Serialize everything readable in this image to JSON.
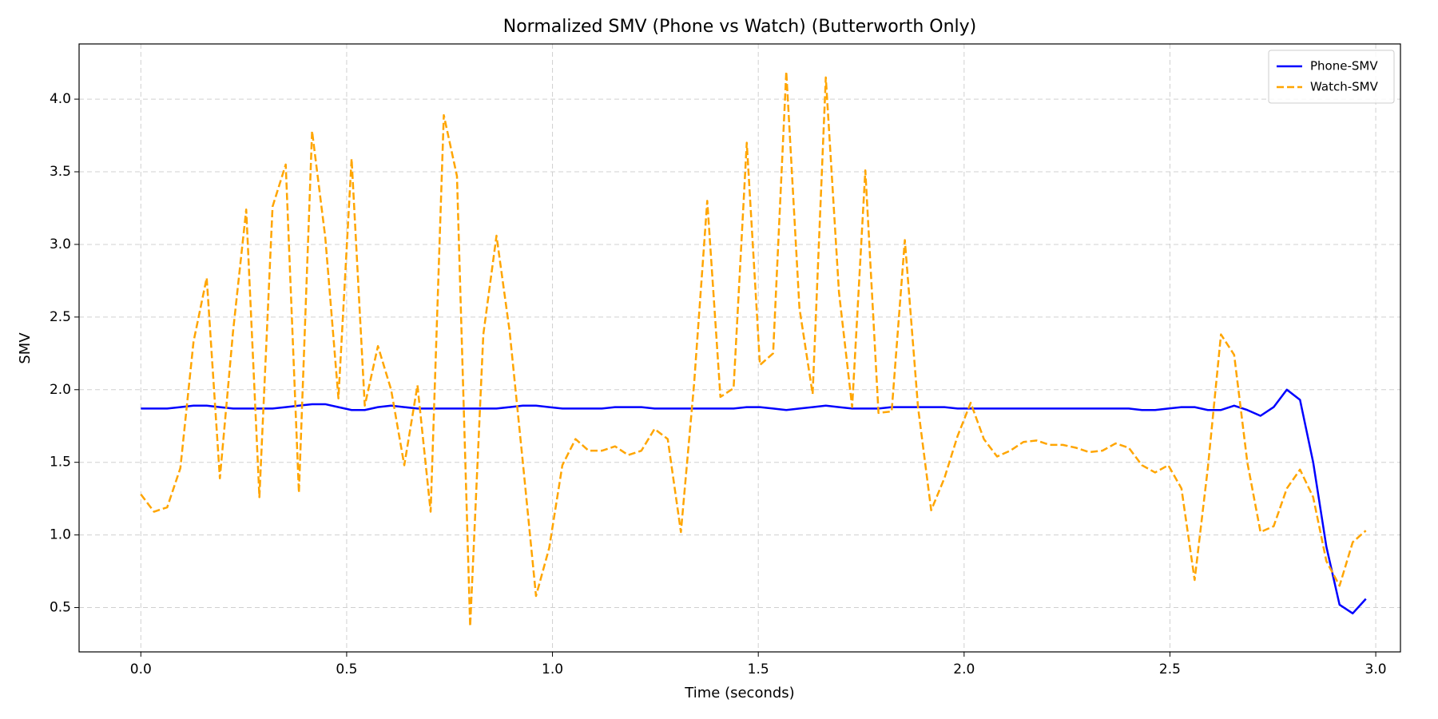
{
  "chart_data": {
    "type": "line",
    "title": "Normalized SMV (Phone vs Watch) (Butterworth Only)",
    "xlabel": "Time (seconds)",
    "ylabel": "SMV",
    "x": [
      0,
      0.032,
      0.064,
      0.096,
      0.128,
      0.16,
      0.192,
      0.224,
      0.256,
      0.288,
      0.32,
      0.352,
      0.384,
      0.416,
      0.448,
      0.48,
      0.512,
      0.544,
      0.576,
      0.608,
      0.64,
      0.672,
      0.704,
      0.736,
      0.768,
      0.8,
      0.832,
      0.864,
      0.896,
      0.928,
      0.96,
      0.992,
      1.024,
      1.056,
      1.088,
      1.12,
      1.152,
      1.184,
      1.216,
      1.248,
      1.28,
      1.312,
      1.344,
      1.376,
      1.408,
      1.44,
      1.472,
      1.504,
      1.536,
      1.568,
      1.6,
      1.632,
      1.664,
      1.696,
      1.728,
      1.76,
      1.792,
      1.824,
      1.856,
      1.888,
      1.92,
      1.952,
      1.984,
      2.016,
      2.048,
      2.08,
      2.112,
      2.144,
      2.176,
      2.208,
      2.24,
      2.272,
      2.304,
      2.336,
      2.368,
      2.4,
      2.432,
      2.464,
      2.496,
      2.528,
      2.56,
      2.592,
      2.624,
      2.656,
      2.688,
      2.72,
      2.752,
      2.784,
      2.816,
      2.848,
      2.88,
      2.912,
      2.944,
      2.976
    ],
    "series": [
      {
        "name": "Phone-SMV",
        "color": "#0000ff",
        "linestyle": "solid",
        "values": [
          1.87,
          1.87,
          1.87,
          1.88,
          1.89,
          1.89,
          1.88,
          1.87,
          1.87,
          1.87,
          1.87,
          1.88,
          1.89,
          1.9,
          1.9,
          1.88,
          1.86,
          1.86,
          1.88,
          1.89,
          1.88,
          1.87,
          1.87,
          1.87,
          1.87,
          1.87,
          1.87,
          1.87,
          1.88,
          1.89,
          1.89,
          1.88,
          1.87,
          1.87,
          1.87,
          1.87,
          1.88,
          1.88,
          1.88,
          1.87,
          1.87,
          1.87,
          1.87,
          1.87,
          1.87,
          1.87,
          1.88,
          1.88,
          1.87,
          1.86,
          1.87,
          1.88,
          1.89,
          1.88,
          1.87,
          1.87,
          1.87,
          1.88,
          1.88,
          1.88,
          1.88,
          1.88,
          1.87,
          1.87,
          1.87,
          1.87,
          1.87,
          1.87,
          1.87,
          1.87,
          1.87,
          1.87,
          1.87,
          1.87,
          1.87,
          1.87,
          1.86,
          1.86,
          1.87,
          1.88,
          1.88,
          1.86,
          1.86,
          1.89,
          1.86,
          1.82,
          1.88,
          2.0,
          1.93,
          1.5,
          0.92,
          0.52,
          0.46,
          0.56
        ]
      },
      {
        "name": "Watch-SMV",
        "color": "#ffa500",
        "linestyle": "dashed",
        "values": [
          1.28,
          1.16,
          1.19,
          1.46,
          2.33,
          2.77,
          1.39,
          2.4,
          3.24,
          1.26,
          3.26,
          3.55,
          1.29,
          3.78,
          3.05,
          1.94,
          3.59,
          1.89,
          2.3,
          2.0,
          1.48,
          2.03,
          1.16,
          3.89,
          3.47,
          0.37,
          2.38,
          3.06,
          2.4,
          1.5,
          0.58,
          0.91,
          1.48,
          1.66,
          1.58,
          1.58,
          1.61,
          1.55,
          1.58,
          1.73,
          1.66,
          1.02,
          2.04,
          3.3,
          1.95,
          2.01,
          3.7,
          2.17,
          2.25,
          4.19,
          2.56,
          1.97,
          4.15,
          2.67,
          1.88,
          3.51,
          1.84,
          1.85,
          3.03,
          1.88,
          1.17,
          1.39,
          1.68,
          1.91,
          1.66,
          1.54,
          1.58,
          1.64,
          1.65,
          1.62,
          1.62,
          1.6,
          1.57,
          1.58,
          1.63,
          1.6,
          1.48,
          1.43,
          1.48,
          1.32,
          0.69,
          1.46,
          2.38,
          2.24,
          1.5,
          1.02,
          1.06,
          1.32,
          1.45,
          1.26,
          0.82,
          0.65,
          0.95,
          1.03
        ]
      }
    ],
    "xlim": [
      -0.15,
      3.06
    ],
    "ylim": [
      0.195,
      4.38
    ],
    "xticks": [
      {
        "value": 0,
        "label": "0.0"
      },
      0.5,
      {
        "value": 1,
        "label": "1.0"
      },
      1.5,
      {
        "value": 2,
        "label": "2.0"
      },
      2.5,
      {
        "value": 3,
        "label": "3.0"
      }
    ],
    "yticks": [
      0.5,
      {
        "value": 1,
        "label": "1.0"
      },
      1.5,
      {
        "value": 2,
        "label": "2.0"
      },
      2.5,
      {
        "value": 3,
        "label": "3.0"
      },
      3.5,
      {
        "value": 4,
        "label": "4.0"
      }
    ],
    "grid": true,
    "legend": "upper right"
  }
}
